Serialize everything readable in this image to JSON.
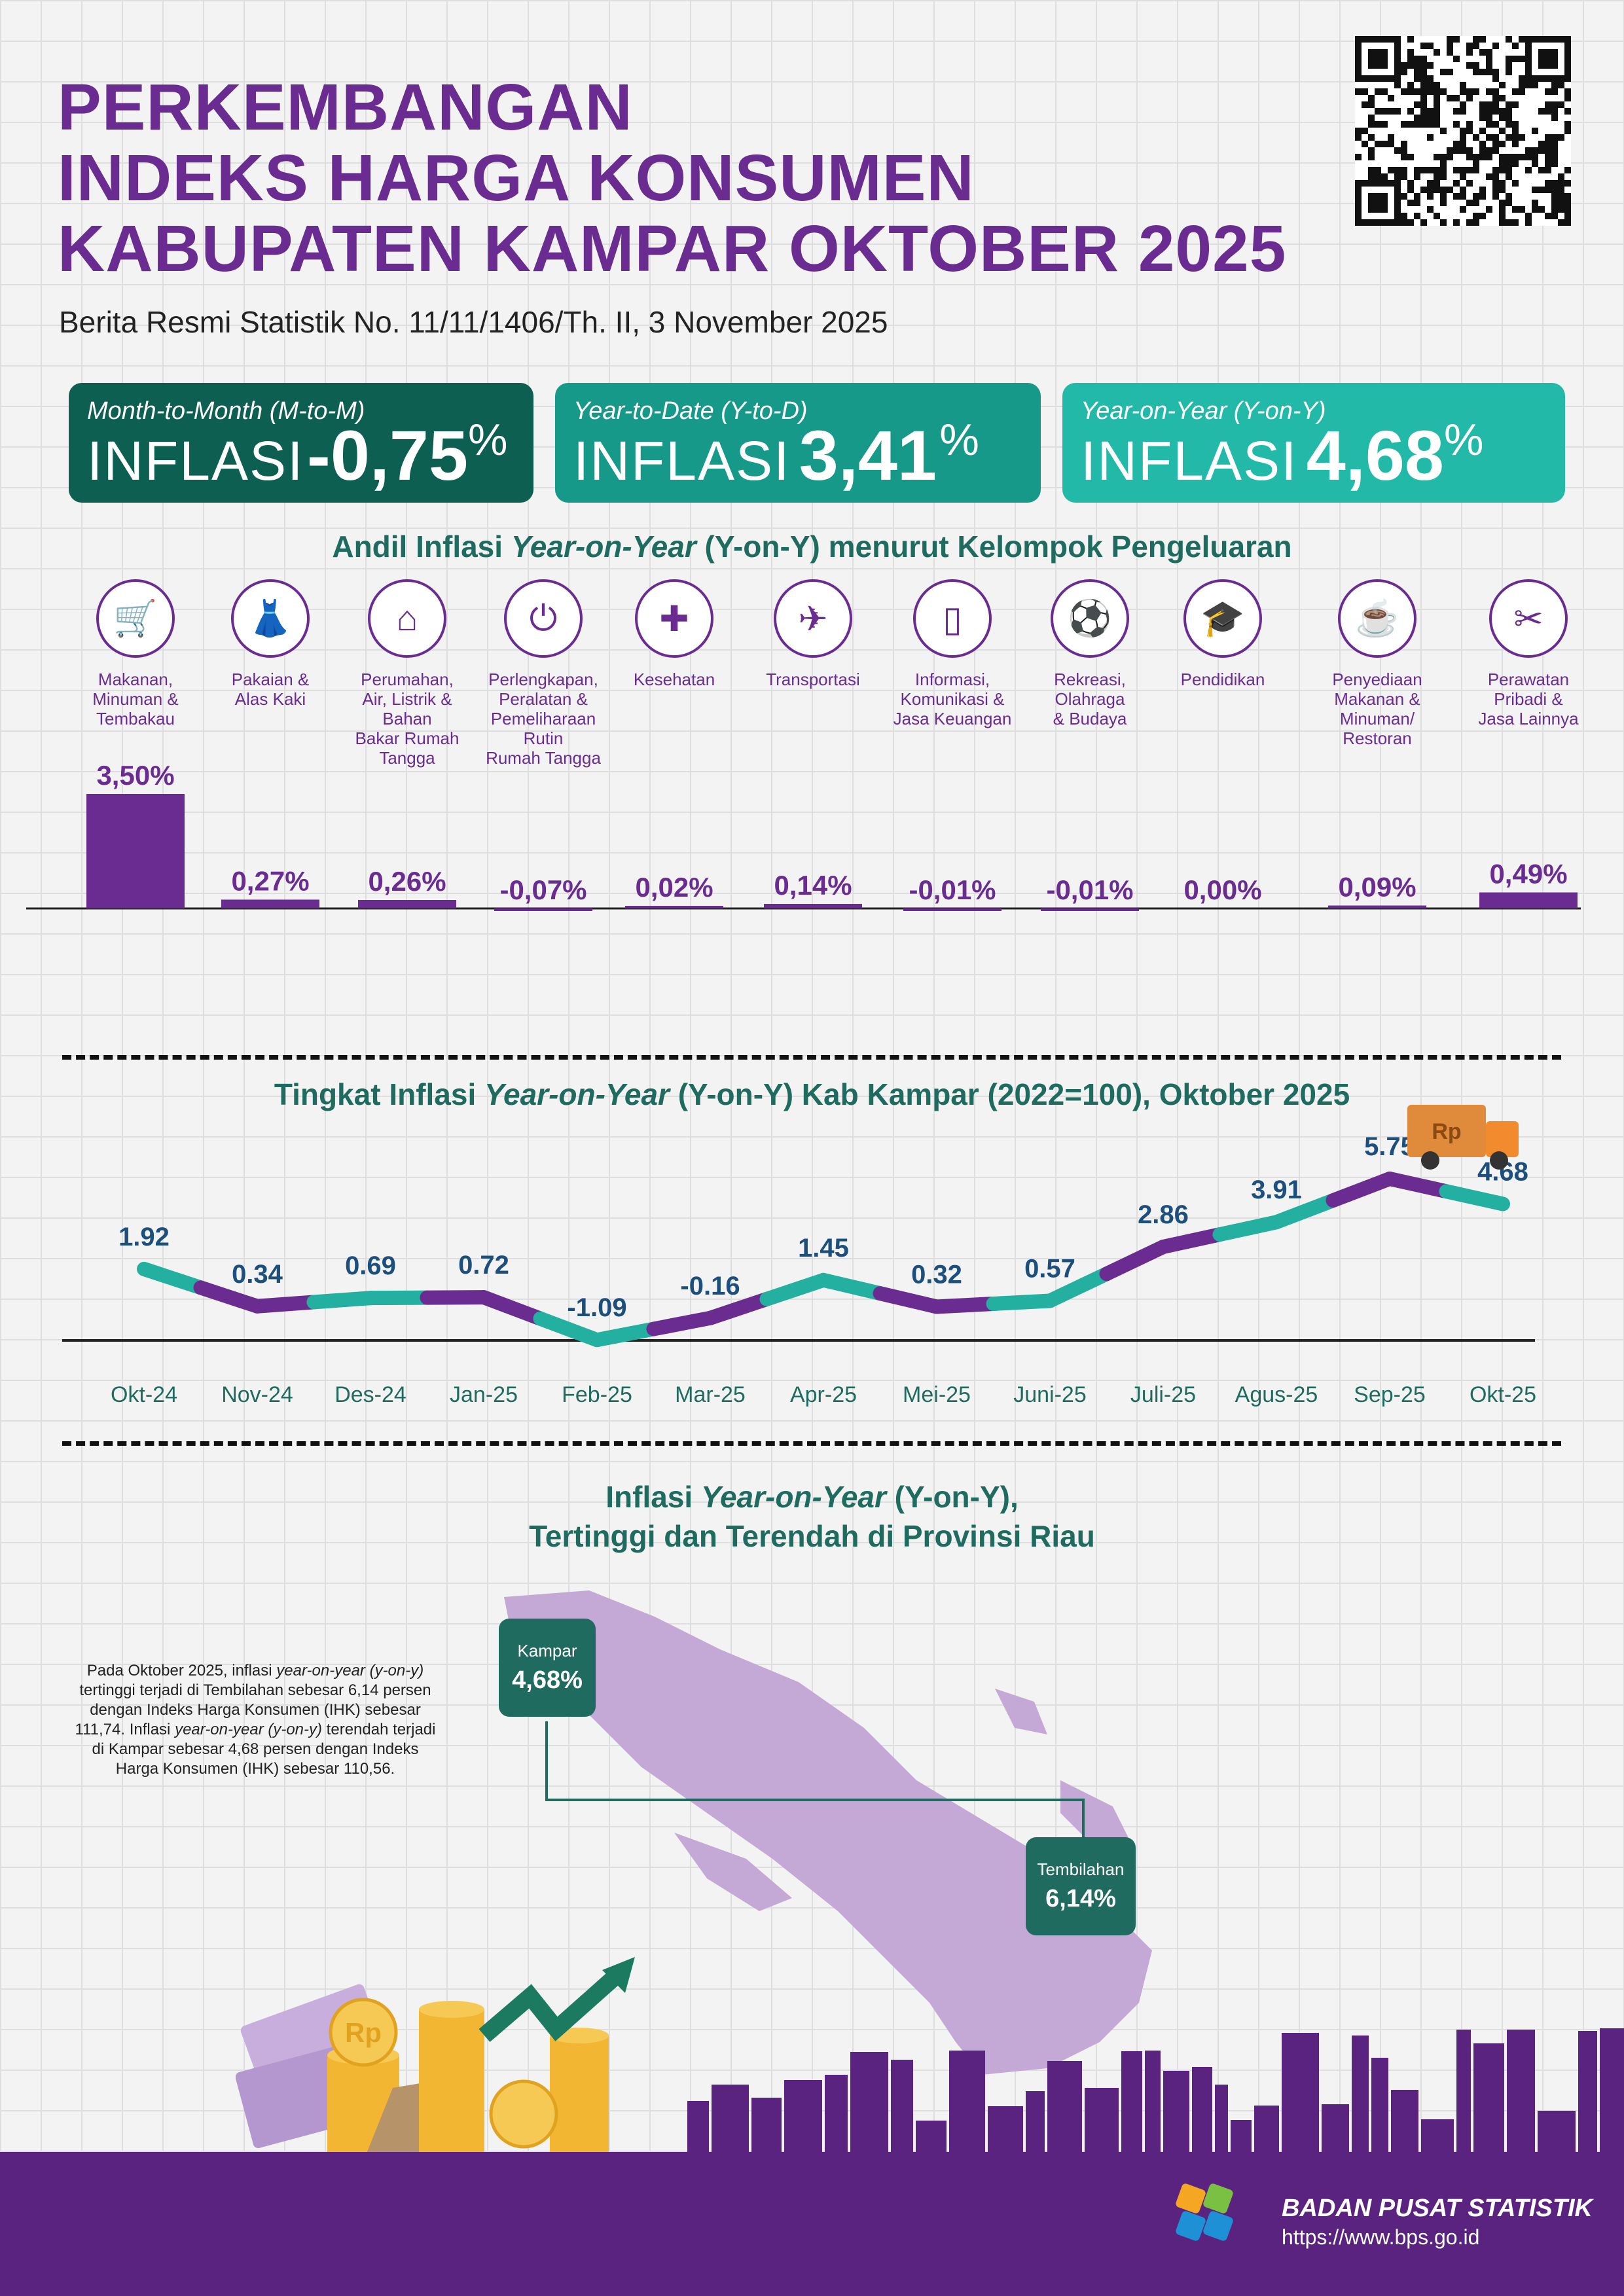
{
  "header": {
    "title_lines": [
      "PERKEMBANGAN",
      "INDEKS HARGA KONSUMEN",
      "KABUPATEN KAMPAR OKTOBER 2025"
    ],
    "subtitle": "Berita Resmi Statistik No. 11/11/1406/Th. II, 3 November 2025"
  },
  "cards": [
    {
      "label": "Month-to-Month (M-to-M)",
      "word": "INFLASI",
      "value": "-0,75",
      "unit": "%",
      "color": "#0d5f52"
    },
    {
      "label": "Year-to-Date (Y-to-D)",
      "word": "INFLASI",
      "value": "3,41",
      "unit": "%",
      "color": "#17998a"
    },
    {
      "label": "Year-on-Year (Y-on-Y)",
      "word": "INFLASI",
      "value": "4,68",
      "unit": "%",
      "color": "#23b9a8"
    }
  ],
  "section1": {
    "title_pre": "Andil Inflasi ",
    "title_ital": "Year-on-Year",
    "title_post": " (Y-on-Y) menurut Kelompok Pengeluaran"
  },
  "section2": {
    "title_pre": "Tingkat Inflasi ",
    "title_ital": "Year-on-Year",
    "title_post": " (Y-on-Y) Kab Kampar (2022=100), Oktober 2025"
  },
  "section3": {
    "line1_pre": "Inflasi ",
    "line1_ital": "Year-on-Year",
    "line1_post": " (Y-on-Y),",
    "line2": "Tertinggi dan Terendah di Provinsi Riau"
  },
  "chart_data": [
    {
      "type": "bar",
      "categories": [
        "Makanan, Minuman & Tembakau",
        "Pakaian & Alas Kaki",
        "Perumahan, Air, Listrik & Bahan Bakar Rumah Tangga",
        "Perlengkapan, Peralatan & Pemeliharaan Rutin Rumah Tangga",
        "Kesehatan",
        "Transportasi",
        "Informasi, Komunikasi & Jasa Keuangan",
        "Rekreasi, Olahraga & Budaya",
        "Pendidikan",
        "Penyediaan Makanan & Minuman/ Restoran",
        "Perawatan Pribadi & Jasa Lainnya"
      ],
      "category_lines": [
        [
          "Makanan,",
          "Minuman &",
          "Tembakau"
        ],
        [
          "Pakaian &",
          "Alas Kaki"
        ],
        [
          "Perumahan,",
          "Air, Listrik &",
          "Bahan",
          "Bakar Rumah",
          "Tangga"
        ],
        [
          "Perlengkapan,",
          "Peralatan &",
          "Pemeliharaan",
          "Rutin",
          "Rumah Tangga"
        ],
        [
          "Kesehatan"
        ],
        [
          "Transportasi"
        ],
        [
          "Informasi,",
          "Komunikasi &",
          "Jasa Keuangan"
        ],
        [
          "Rekreasi,",
          "Olahraga",
          "& Budaya"
        ],
        [
          "Pendidikan"
        ],
        [
          "Penyediaan",
          "Makanan &",
          "Minuman/",
          "Restoran"
        ],
        [
          "Perawatan",
          "Pribadi &",
          "Jasa Lainnya"
        ]
      ],
      "icons": [
        "grocery-basket-icon",
        "dress-icon",
        "house-icon",
        "plug-icon",
        "medical-kit-icon",
        "airplane-icon",
        "smartphone-icon",
        "football-player-icon",
        "graduation-cap-icon",
        "food-drink-icon",
        "scissors-comb-icon"
      ],
      "values": [
        3.5,
        0.27,
        0.26,
        -0.07,
        0.02,
        0.14,
        -0.01,
        -0.01,
        0.0,
        0.09,
        0.49
      ],
      "labels": [
        "3,50%",
        "0,27%",
        "0,26%",
        "-0,07%",
        "0,02%",
        "0,14%",
        "-0,01%",
        "-0,01%",
        "0,00%",
        "0,09%",
        "0,49%"
      ],
      "color": "#6a2c91"
    },
    {
      "type": "line",
      "x": [
        "Okt-24",
        "Nov-24",
        "Des-24",
        "Jan-25",
        "Feb-25",
        "Mar-25",
        "Apr-25",
        "Mei-25",
        "Juni-25",
        "Juli-25",
        "Agus-25",
        "Sep-25",
        "Okt-25"
      ],
      "values": [
        1.92,
        0.34,
        0.69,
        0.72,
        -1.09,
        -0.16,
        1.45,
        0.32,
        0.57,
        2.86,
        3.91,
        5.75,
        4.68
      ],
      "labels": [
        "1.92",
        "0.34",
        "0.69",
        "0.72",
        "-1.09",
        "-0.16",
        "1.45",
        "0.32",
        "0.57",
        "2.86",
        "3.91",
        "5.75",
        "4.68"
      ],
      "colors": [
        "#23b0a0",
        "#6a2c91"
      ]
    }
  ],
  "map": {
    "kampar": {
      "name": "Kampar",
      "value": "4,68%"
    },
    "tembilahan": {
      "name": "Tembilahan",
      "value": "6,14%"
    },
    "note_html": "Pada Oktober 2025, inflasi <i>year-on-year (y-on-y)</i> tertinggi terjadi di Tembilahan sebesar 6,14 persen dengan Indeks Harga Konsumen (IHK) sebesar 111,74. Inflasi <i>year-on-year (y-on-y)</i> terendah terjadi di Kampar sebesar 4,68 persen dengan Indeks Harga Konsumen (IHK) sebesar 110,56."
  },
  "truck_label": "Rp",
  "coin_label": "Rp",
  "footer": {
    "org": "BADAN PUSAT STATISTIK",
    "url": "https://www.bps.go.id"
  }
}
